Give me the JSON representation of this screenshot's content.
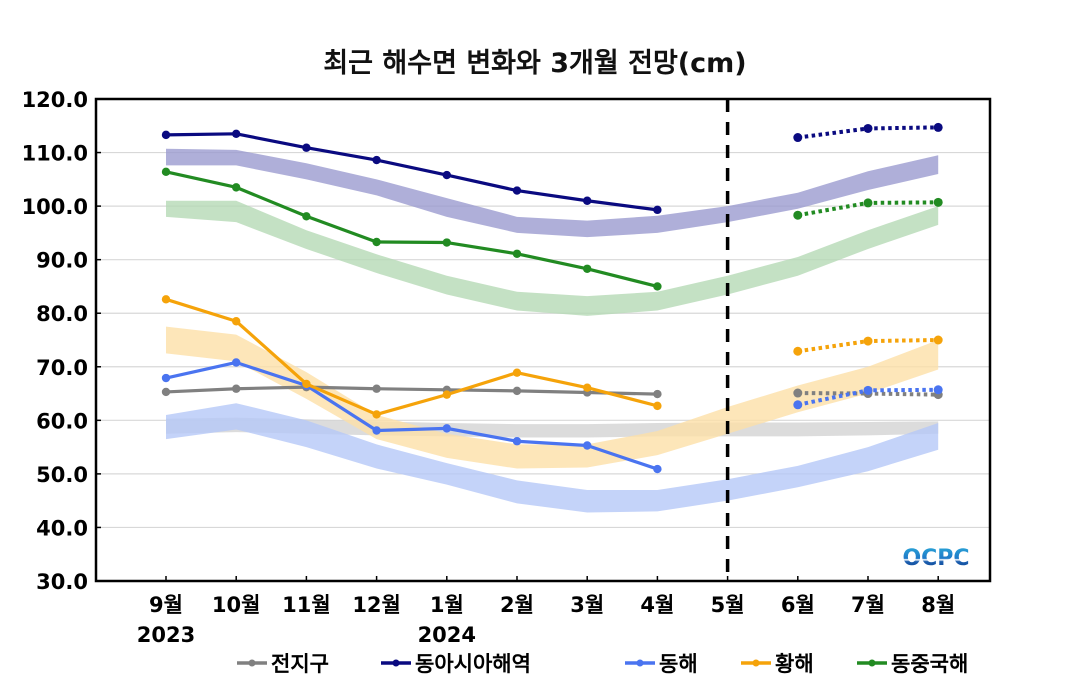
{
  "chart_data": {
    "type": "line",
    "title": "최근 해수면 변화와 3개월 전망(cm)",
    "xlabel": "",
    "ylabel": "",
    "ylim": [
      30,
      120
    ],
    "yticks": [
      "30.0",
      "40.0",
      "50.0",
      "60.0",
      "70.0",
      "80.0",
      "90.0",
      "100.0",
      "110.0",
      "120.0"
    ],
    "ytick_values": [
      30,
      40,
      50,
      60,
      70,
      80,
      90,
      100,
      110,
      120
    ],
    "grid": true,
    "categories": [
      "9월",
      "10월",
      "11월",
      "12월",
      "1월",
      "2월",
      "3월",
      "4월",
      "5월",
      "6월",
      "7월",
      "8월"
    ],
    "year_labels": [
      {
        "label": "2023",
        "at_category": 0
      },
      {
        "label": "2024",
        "at_category": 4
      }
    ],
    "divider": {
      "at_category": 8,
      "style": "dashed",
      "meaning": "observed / forecast boundary"
    },
    "legend_position": "bottom",
    "series": [
      {
        "name": "전지구",
        "color": "#808080",
        "band_color": "#d3d3d3",
        "observed": [
          65.3,
          65.9,
          66.2,
          65.9,
          65.7,
          65.5,
          65.2,
          64.9,
          null,
          null,
          null,
          null
        ],
        "forecast": [
          null,
          null,
          null,
          null,
          null,
          null,
          null,
          null,
          null,
          65.1,
          65.0,
          64.8
        ],
        "band_low": [
          57.5,
          57.8,
          57.5,
          57.2,
          57.0,
          56.8,
          56.8,
          57.0,
          57.0,
          57.0,
          57.2,
          57.5
        ],
        "band_high": [
          60.3,
          60.5,
          60.2,
          59.8,
          59.5,
          59.3,
          59.3,
          59.5,
          59.6,
          59.6,
          59.7,
          59.8
        ]
      },
      {
        "name": "동아시아해역",
        "color": "#0a0a80",
        "band_color": "#9b9bd0",
        "observed": [
          113.3,
          113.5,
          110.9,
          108.6,
          105.8,
          102.9,
          101.0,
          99.3,
          null,
          null,
          null,
          null
        ],
        "forecast": [
          null,
          null,
          null,
          null,
          null,
          null,
          null,
          null,
          null,
          112.8,
          114.5,
          114.7
        ],
        "band_low": [
          107.6,
          107.6,
          105.0,
          102.0,
          98.0,
          95.0,
          94.2,
          95.0,
          97.0,
          99.5,
          103.0,
          106.0
        ],
        "band_high": [
          110.7,
          110.5,
          108.0,
          105.0,
          101.5,
          98.0,
          97.3,
          98.2,
          100.0,
          102.5,
          106.5,
          109.5
        ]
      },
      {
        "name": "동해",
        "color": "#4a74f0",
        "band_color": "#b5c8f8",
        "observed": [
          67.9,
          70.8,
          66.5,
          58.1,
          58.5,
          56.1,
          55.3,
          50.9,
          null,
          null,
          null,
          null
        ],
        "forecast": [
          null,
          null,
          null,
          null,
          null,
          null,
          null,
          null,
          null,
          62.9,
          65.6,
          65.7
        ],
        "band_low": [
          56.5,
          58.3,
          55.0,
          51.0,
          48.0,
          44.5,
          42.8,
          43.0,
          45.0,
          47.5,
          50.5,
          54.5
        ],
        "band_high": [
          61.0,
          63.2,
          60.0,
          55.5,
          52.0,
          48.8,
          47.0,
          47.0,
          49.0,
          51.5,
          55.0,
          59.5
        ]
      },
      {
        "name": "황해",
        "color": "#f5a30a",
        "band_color": "#fde0a8",
        "observed": [
          82.6,
          78.5,
          66.8,
          61.1,
          64.8,
          68.9,
          66.1,
          62.7,
          null,
          null,
          null,
          null
        ],
        "forecast": [
          null,
          null,
          null,
          null,
          null,
          null,
          null,
          null,
          null,
          72.9,
          74.8,
          75.0
        ],
        "band_low": [
          72.5,
          71.0,
          64.0,
          56.5,
          53.0,
          51.0,
          51.2,
          53.5,
          57.5,
          61.5,
          65.0,
          69.5
        ],
        "band_high": [
          77.5,
          76.0,
          69.0,
          61.0,
          57.5,
          55.5,
          55.5,
          58.0,
          62.5,
          66.5,
          70.0,
          75.0
        ]
      },
      {
        "name": "동중국해",
        "color": "#228b22",
        "band_color": "#b5dab5",
        "observed": [
          106.4,
          103.5,
          98.1,
          93.3,
          93.2,
          91.1,
          88.3,
          85.0,
          null,
          null,
          null,
          null
        ],
        "forecast": [
          null,
          null,
          null,
          null,
          null,
          null,
          null,
          null,
          null,
          98.3,
          100.6,
          100.7
        ],
        "band_low": [
          98.0,
          97.0,
          92.0,
          87.5,
          83.5,
          80.5,
          79.5,
          80.5,
          83.5,
          87.0,
          92.0,
          96.5
        ],
        "band_high": [
          101.0,
          101.0,
          95.5,
          91.0,
          87.0,
          84.0,
          83.2,
          84.0,
          87.0,
          90.5,
          95.5,
          100.0
        ]
      }
    ]
  },
  "logo": {
    "text": "OCPC"
  }
}
